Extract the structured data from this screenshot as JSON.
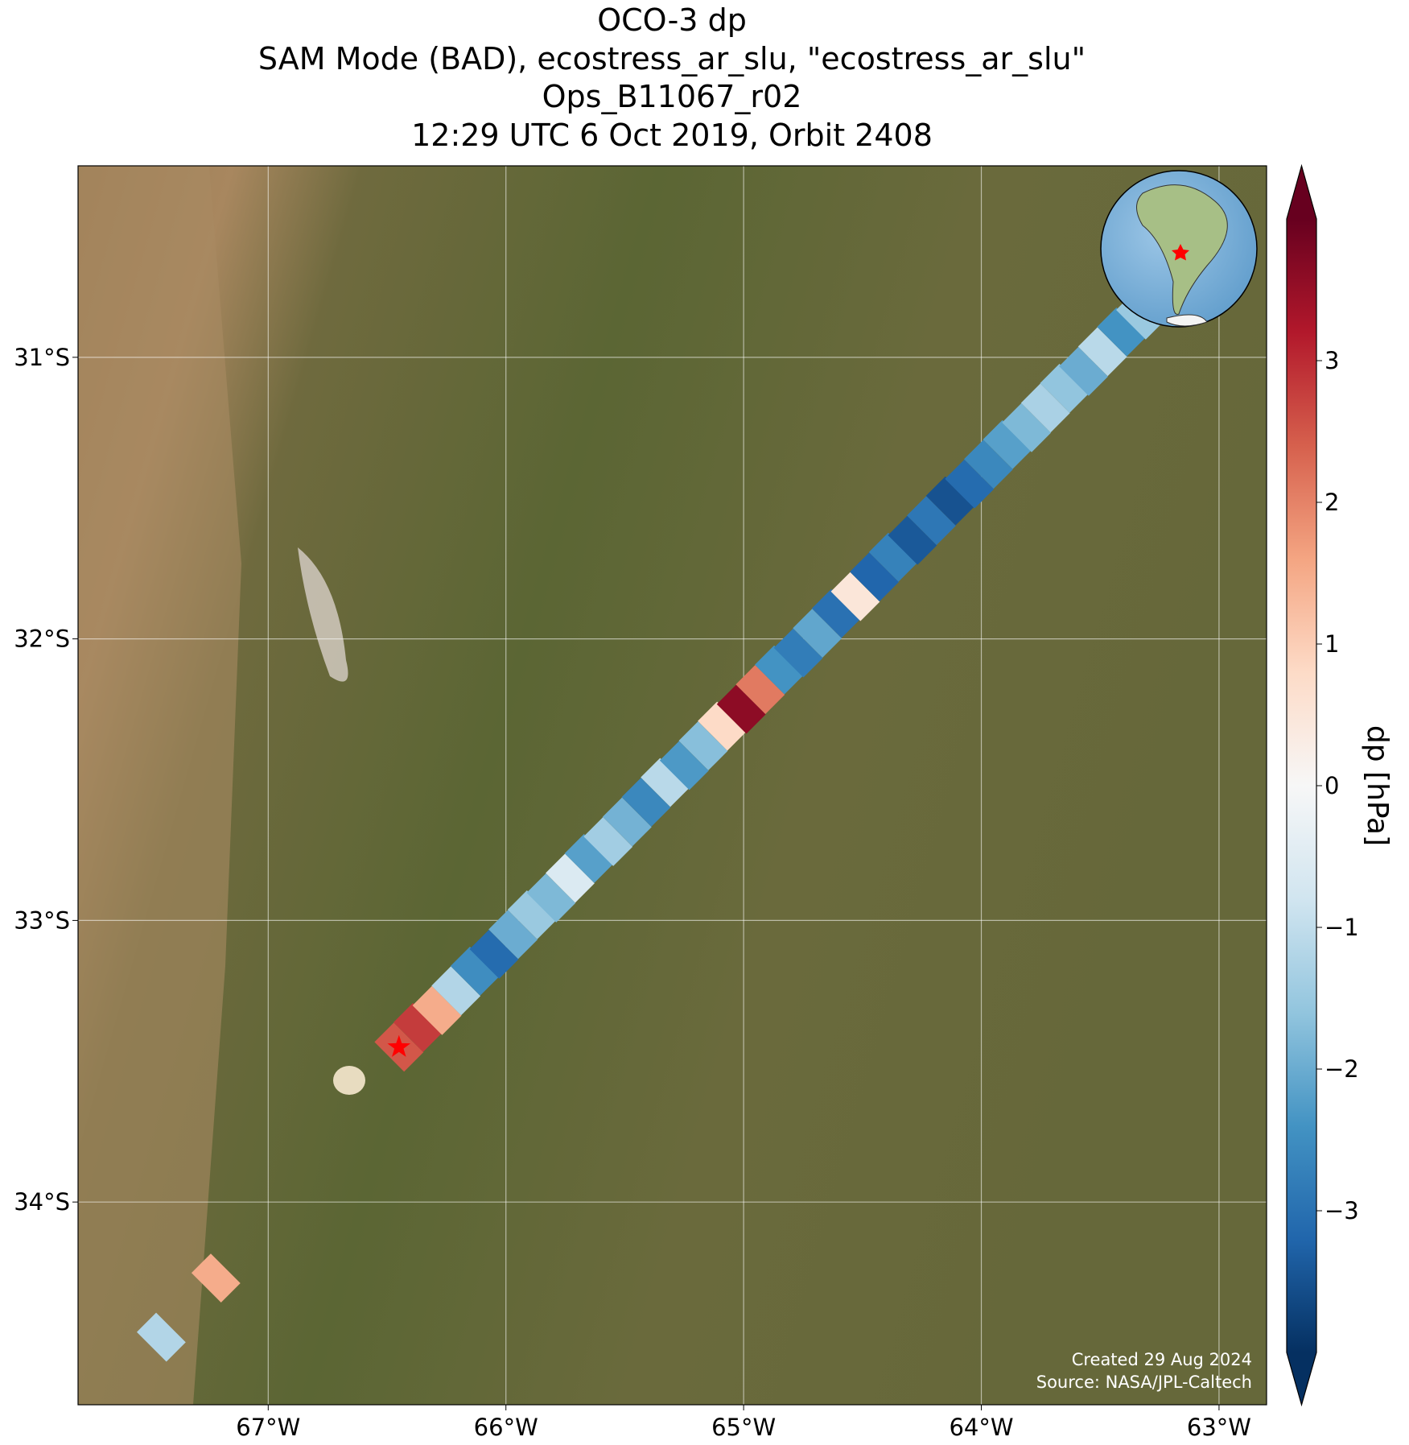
{
  "chart_data": {
    "type": "swath-map",
    "title_lines": [
      "OCO-3 dp",
      "SAM Mode (BAD), ecostress_ar_slu, \"ecostress_ar_slu\"",
      "Ops_B11067_r02",
      "12:29 UTC 6 Oct 2019, Orbit 2408"
    ],
    "xlim": [
      -67.8,
      -62.8
    ],
    "ylim": [
      -34.72,
      -30.32
    ],
    "xticks": [
      {
        "value": -67,
        "label": "67°W"
      },
      {
        "value": -66,
        "label": "66°W"
      },
      {
        "value": -65,
        "label": "65°W"
      },
      {
        "value": -64,
        "label": "64°W"
      },
      {
        "value": -63,
        "label": "63°W"
      }
    ],
    "yticks": [
      {
        "value": -31,
        "label": "31°S"
      },
      {
        "value": -32,
        "label": "32°S"
      },
      {
        "value": -33,
        "label": "33°S"
      },
      {
        "value": -34,
        "label": "34°S"
      }
    ],
    "grid": true,
    "x": [
      -66.45,
      -66.37,
      -66.29,
      -66.21,
      -66.13,
      -66.05,
      -65.97,
      -65.89,
      -65.81,
      -65.73,
      -65.65,
      -65.57,
      -65.49,
      -65.41,
      -65.33,
      -65.25,
      -65.17,
      -65.09,
      -65.01,
      -64.93,
      -64.85,
      -64.77,
      -64.69,
      -64.61,
      -64.53,
      -64.45,
      -64.37,
      -64.29,
      -64.21,
      -64.13,
      -64.05,
      -63.97,
      -63.89,
      -63.81,
      -63.73,
      -63.65,
      -63.57,
      -63.49,
      -63.41,
      -63.33,
      -63.25,
      -67.45,
      -67.22
    ],
    "y": [
      -33.45,
      -33.38,
      -33.32,
      -33.25,
      -33.18,
      -33.12,
      -33.05,
      -32.98,
      -32.92,
      -32.85,
      -32.78,
      -32.72,
      -32.65,
      -32.58,
      -32.51,
      -32.45,
      -32.38,
      -32.31,
      -32.25,
      -32.18,
      -32.11,
      -32.05,
      -31.98,
      -31.91,
      -31.85,
      -31.78,
      -31.71,
      -31.65,
      -31.58,
      -31.51,
      -31.45,
      -31.38,
      -31.31,
      -31.25,
      -31.18,
      -31.11,
      -31.05,
      -30.98,
      -30.91,
      -30.85,
      -30.78,
      -34.48,
      -34.27
    ],
    "values": [
      2.5,
      2.8,
      1.5,
      -1.2,
      -2.5,
      -3.1,
      -2.0,
      -1.5,
      -1.8,
      -0.6,
      -2.2,
      -1.4,
      -1.9,
      -2.6,
      -1.1,
      -2.3,
      -1.7,
      0.8,
      3.6,
      2.1,
      -2.4,
      -2.8,
      -2.1,
      -3.0,
      0.5,
      -3.2,
      -2.7,
      -3.4,
      -2.9,
      -3.5,
      -3.1,
      -2.6,
      -2.2,
      -1.8,
      -1.3,
      -1.6,
      -2.0,
      -1.1,
      -2.4,
      -1.5,
      -1.9,
      -1.2,
      1.5
    ],
    "site_marker": {
      "x": -66.45,
      "y": -33.45,
      "color": "#ff0000"
    },
    "colorbar": {
      "label": "dp [hPa]",
      "clim": [
        -4,
        4
      ],
      "cmap": "RdBu_r",
      "extend": "both",
      "ticks": [
        3,
        2,
        1,
        0,
        {
          "value": -1,
          "label": "−1"
        },
        {
          "value": -2,
          "label": "−2"
        },
        {
          "value": -3,
          "label": "−3"
        }
      ]
    },
    "annotations": [
      "Created 29 Aug 2024",
      "Source: NASA/JPL-Caltech"
    ]
  }
}
